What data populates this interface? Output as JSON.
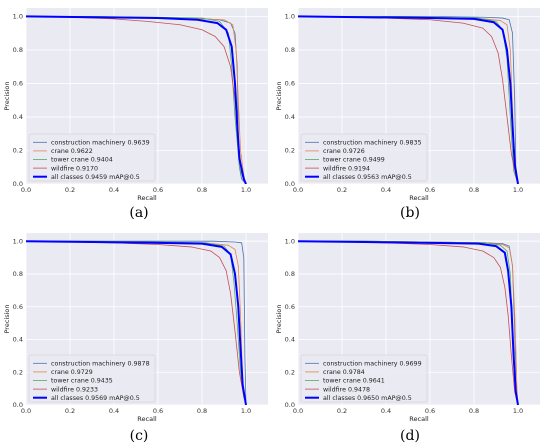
{
  "figure": {
    "captions": [
      "(a)",
      "(b)",
      "(c)",
      "(d)"
    ]
  },
  "colors": {
    "background": "#ffffff",
    "axes_face": "#eaeaf2",
    "grid": "#ffffff",
    "construction_machinery": "#4c72b0",
    "crane": "#dd8452",
    "tower_crane": "#55a868",
    "wildfire": "#c44e52",
    "all_classes": "#0000ff"
  },
  "chart_data": [
    {
      "type": "line",
      "panel": "(a)",
      "xlabel": "Recall",
      "ylabel": "Precision",
      "xlim": [
        0.0,
        1.1
      ],
      "ylim": [
        0.0,
        1.05
      ],
      "xticks": [
        "0.0",
        "0.2",
        "0.4",
        "0.6",
        "0.8",
        "1.0"
      ],
      "yticks": [
        "0.0",
        "0.2",
        "0.4",
        "0.6",
        "0.8",
        "1.0"
      ],
      "grid": true,
      "legend_position": "lower-left",
      "series": [
        {
          "name": "construction machinery 0.9639",
          "color_key": "construction_machinery",
          "linewidth": 0.8,
          "x": [
            0.0,
            0.2,
            0.5,
            0.75,
            0.88,
            0.93,
            0.95,
            0.96,
            0.965,
            0.97,
            0.98,
            1.0
          ],
          "y": [
            1.0,
            1.0,
            0.995,
            0.99,
            0.98,
            0.96,
            0.9,
            0.7,
            0.3,
            0.1,
            0.03,
            0.0
          ]
        },
        {
          "name": "crane 0.9622",
          "color_key": "crane",
          "linewidth": 0.8,
          "x": [
            0.0,
            0.3,
            0.6,
            0.8,
            0.9,
            0.94,
            0.955,
            0.965,
            0.975,
            0.99,
            1.0
          ],
          "y": [
            1.0,
            0.995,
            0.99,
            0.985,
            0.98,
            0.95,
            0.8,
            0.5,
            0.2,
            0.05,
            0.0
          ]
        },
        {
          "name": "tower crane 0.9404",
          "color_key": "tower_crane",
          "linewidth": 0.8,
          "x": [
            0.0,
            0.3,
            0.6,
            0.8,
            0.88,
            0.92,
            0.935,
            0.95,
            0.97,
            0.99,
            1.0
          ],
          "y": [
            1.0,
            1.0,
            0.995,
            0.99,
            0.97,
            0.9,
            0.7,
            0.4,
            0.1,
            0.02,
            0.0
          ]
        },
        {
          "name": "wildfire 0.9170",
          "color_key": "wildfire",
          "linewidth": 0.8,
          "x": [
            0.0,
            0.2,
            0.4,
            0.55,
            0.7,
            0.8,
            0.86,
            0.9,
            0.93,
            0.95,
            0.965,
            0.98,
            1.0
          ],
          "y": [
            1.0,
            0.995,
            0.985,
            0.97,
            0.95,
            0.92,
            0.88,
            0.82,
            0.7,
            0.5,
            0.25,
            0.08,
            0.0
          ]
        },
        {
          "name": "all classes 0.9459 mAP@0.5",
          "color_key": "all_classes",
          "linewidth": 2.0,
          "x": [
            0.0,
            0.3,
            0.6,
            0.78,
            0.87,
            0.91,
            0.935,
            0.95,
            0.96,
            0.97,
            0.99,
            1.0
          ],
          "y": [
            1.0,
            0.995,
            0.99,
            0.98,
            0.96,
            0.92,
            0.82,
            0.6,
            0.35,
            0.15,
            0.03,
            0.0
          ]
        }
      ]
    },
    {
      "type": "line",
      "panel": "(b)",
      "xlabel": "Recall",
      "ylabel": "Precision",
      "xlim": [
        0.0,
        1.1
      ],
      "ylim": [
        0.0,
        1.05
      ],
      "xticks": [
        "0.0",
        "0.2",
        "0.4",
        "0.6",
        "0.8",
        "1.0"
      ],
      "yticks": [
        "0.0",
        "0.2",
        "0.4",
        "0.6",
        "0.8",
        "1.0"
      ],
      "grid": true,
      "legend_position": "lower-left",
      "series": [
        {
          "name": "construction machinery 0.9835",
          "color_key": "construction_machinery",
          "linewidth": 0.8,
          "x": [
            0.0,
            0.3,
            0.6,
            0.85,
            0.93,
            0.96,
            0.975,
            0.985,
            0.99,
            1.0
          ],
          "y": [
            1.0,
            1.0,
            1.0,
            0.995,
            0.99,
            0.98,
            0.9,
            0.5,
            0.1,
            0.0
          ]
        },
        {
          "name": "crane 0.9726",
          "color_key": "crane",
          "linewidth": 0.8,
          "x": [
            0.0,
            0.3,
            0.6,
            0.85,
            0.92,
            0.95,
            0.965,
            0.975,
            0.985,
            1.0
          ],
          "y": [
            1.0,
            0.995,
            0.99,
            0.985,
            0.975,
            0.95,
            0.8,
            0.45,
            0.1,
            0.0
          ]
        },
        {
          "name": "tower crane 0.9499",
          "color_key": "tower_crane",
          "linewidth": 0.8,
          "x": [
            0.0,
            0.3,
            0.6,
            0.82,
            0.9,
            0.93,
            0.95,
            0.965,
            0.98,
            1.0
          ],
          "y": [
            1.0,
            1.0,
            0.995,
            0.99,
            0.97,
            0.92,
            0.75,
            0.4,
            0.08,
            0.0
          ]
        },
        {
          "name": "wildfire 0.9194",
          "color_key": "wildfire",
          "linewidth": 0.8,
          "x": [
            0.0,
            0.2,
            0.4,
            0.6,
            0.75,
            0.84,
            0.88,
            0.91,
            0.93,
            0.95,
            0.97,
            0.99,
            1.0
          ],
          "y": [
            1.0,
            0.995,
            0.99,
            0.98,
            0.96,
            0.93,
            0.88,
            0.78,
            0.62,
            0.4,
            0.18,
            0.05,
            0.0
          ]
        },
        {
          "name": "all classes 0.9563 mAP@0.5",
          "color_key": "all_classes",
          "linewidth": 2.0,
          "x": [
            0.0,
            0.3,
            0.6,
            0.8,
            0.89,
            0.93,
            0.95,
            0.965,
            0.975,
            0.985,
            1.0
          ],
          "y": [
            1.0,
            0.995,
            0.99,
            0.985,
            0.965,
            0.92,
            0.8,
            0.6,
            0.35,
            0.12,
            0.0
          ]
        }
      ]
    },
    {
      "type": "line",
      "panel": "(c)",
      "xlabel": "Recall",
      "ylabel": "Precision",
      "xlim": [
        0.0,
        1.1
      ],
      "ylim": [
        0.0,
        1.05
      ],
      "xticks": [
        "0.0",
        "0.2",
        "0.4",
        "0.6",
        "0.8",
        "1.0"
      ],
      "yticks": [
        "0.0",
        "0.2",
        "0.4",
        "0.6",
        "0.8",
        "1.0"
      ],
      "grid": true,
      "legend_position": "lower-left",
      "series": [
        {
          "name": "construction machinery 0.9878",
          "color_key": "construction_machinery",
          "linewidth": 0.8,
          "x": [
            0.0,
            0.3,
            0.6,
            0.85,
            0.95,
            0.98,
            0.99,
            0.995,
            1.0
          ],
          "y": [
            1.0,
            1.0,
            1.0,
            1.0,
            0.995,
            0.99,
            0.9,
            0.3,
            0.0
          ]
        },
        {
          "name": "crane 0.9729",
          "color_key": "crane",
          "linewidth": 0.8,
          "x": [
            0.0,
            0.3,
            0.6,
            0.85,
            0.92,
            0.95,
            0.965,
            0.975,
            0.985,
            1.0
          ],
          "y": [
            1.0,
            0.995,
            0.99,
            0.985,
            0.975,
            0.95,
            0.85,
            0.55,
            0.15,
            0.0
          ]
        },
        {
          "name": "tower crane 0.9435",
          "color_key": "tower_crane",
          "linewidth": 0.8,
          "x": [
            0.0,
            0.3,
            0.6,
            0.82,
            0.9,
            0.93,
            0.945,
            0.96,
            0.975,
            0.99,
            1.0
          ],
          "y": [
            1.0,
            1.0,
            0.995,
            0.99,
            0.97,
            0.92,
            0.75,
            0.5,
            0.2,
            0.05,
            0.0
          ]
        },
        {
          "name": "wildfire 0.9233",
          "color_key": "wildfire",
          "linewidth": 0.8,
          "x": [
            0.0,
            0.2,
            0.4,
            0.6,
            0.75,
            0.84,
            0.88,
            0.91,
            0.93,
            0.95,
            0.97,
            0.99,
            1.0
          ],
          "y": [
            1.0,
            0.995,
            0.99,
            0.98,
            0.965,
            0.94,
            0.9,
            0.82,
            0.68,
            0.45,
            0.2,
            0.05,
            0.0
          ]
        },
        {
          "name": "all classes 0.9569 mAP@0.5",
          "color_key": "all_classes",
          "linewidth": 2.0,
          "x": [
            0.0,
            0.3,
            0.6,
            0.8,
            0.89,
            0.93,
            0.95,
            0.965,
            0.975,
            0.985,
            1.0
          ],
          "y": [
            1.0,
            0.995,
            0.99,
            0.985,
            0.965,
            0.92,
            0.8,
            0.6,
            0.35,
            0.12,
            0.0
          ]
        }
      ]
    },
    {
      "type": "line",
      "panel": "(d)",
      "xlabel": "Recall",
      "ylabel": "Precision",
      "xlim": [
        0.0,
        1.1
      ],
      "ylim": [
        0.0,
        1.05
      ],
      "xticks": [
        "0.0",
        "0.2",
        "0.4",
        "0.6",
        "0.8",
        "1.0"
      ],
      "yticks": [
        "0.0",
        "0.2",
        "0.4",
        "0.6",
        "0.8",
        "1.0"
      ],
      "grid": true,
      "legend_position": "lower-left",
      "series": [
        {
          "name": "construction machinery 0.9699",
          "color_key": "construction_machinery",
          "linewidth": 0.8,
          "x": [
            0.0,
            0.3,
            0.6,
            0.85,
            0.93,
            0.96,
            0.975,
            0.985,
            0.99,
            1.0
          ],
          "y": [
            1.0,
            1.0,
            0.995,
            0.99,
            0.985,
            0.97,
            0.85,
            0.45,
            0.1,
            0.0
          ]
        },
        {
          "name": "crane 0.9784",
          "color_key": "crane",
          "linewidth": 0.8,
          "x": [
            0.0,
            0.3,
            0.6,
            0.85,
            0.93,
            0.96,
            0.975,
            0.985,
            0.995,
            1.0
          ],
          "y": [
            1.0,
            1.0,
            0.995,
            0.99,
            0.98,
            0.96,
            0.85,
            0.55,
            0.12,
            0.0
          ]
        },
        {
          "name": "tower crane 0.9641",
          "color_key": "tower_crane",
          "linewidth": 0.8,
          "x": [
            0.0,
            0.3,
            0.6,
            0.85,
            0.92,
            0.95,
            0.965,
            0.975,
            0.985,
            1.0
          ],
          "y": [
            1.0,
            1.0,
            0.995,
            0.99,
            0.975,
            0.94,
            0.8,
            0.45,
            0.1,
            0.0
          ]
        },
        {
          "name": "wildfire 0.9478",
          "color_key": "wildfire",
          "linewidth": 0.8,
          "x": [
            0.0,
            0.2,
            0.4,
            0.6,
            0.75,
            0.84,
            0.89,
            0.92,
            0.94,
            0.955,
            0.97,
            0.985,
            1.0
          ],
          "y": [
            1.0,
            0.995,
            0.99,
            0.98,
            0.965,
            0.94,
            0.9,
            0.84,
            0.72,
            0.55,
            0.3,
            0.08,
            0.0
          ]
        },
        {
          "name": "all classes 0.9650 mAP@0.5",
          "color_key": "all_classes",
          "linewidth": 2.0,
          "x": [
            0.0,
            0.3,
            0.6,
            0.82,
            0.9,
            0.94,
            0.955,
            0.97,
            0.98,
            0.99,
            1.0
          ],
          "y": [
            1.0,
            0.995,
            0.99,
            0.985,
            0.97,
            0.93,
            0.82,
            0.6,
            0.3,
            0.08,
            0.0
          ]
        }
      ]
    }
  ]
}
